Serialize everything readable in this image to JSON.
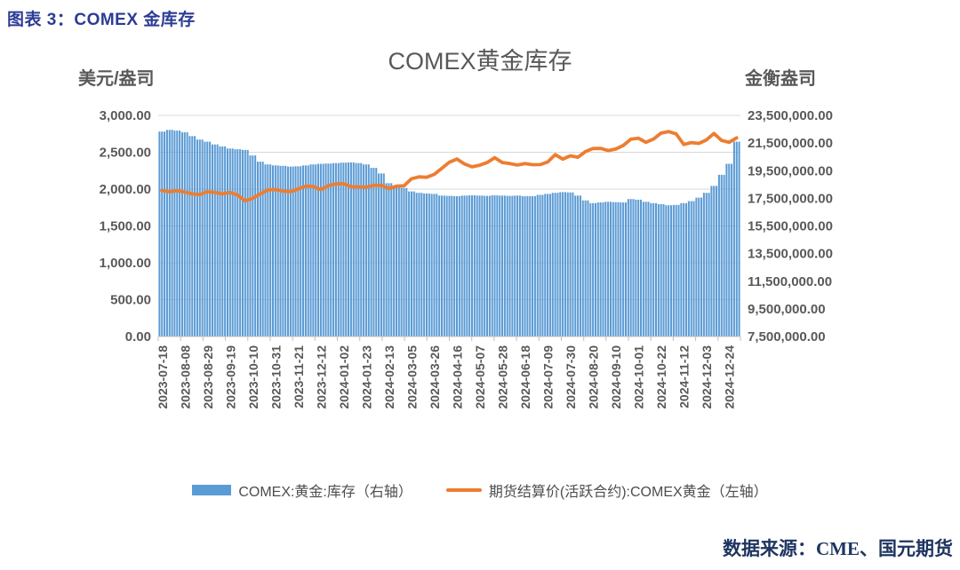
{
  "page": {
    "header": "图表 3：COMEX 金库存",
    "source": "数据来源：CME、国元期货"
  },
  "chart_data": {
    "type": "combo-bar-line",
    "title": "COMEX黄金库存",
    "left_axis": {
      "unit_label": "美元/盎司",
      "min": 0,
      "max": 3000,
      "step": 500,
      "tick_labels": [
        "3,000.00",
        "2,500.00",
        "2,000.00",
        "1,500.00",
        "1,000.00",
        "500.00",
        "0.00"
      ]
    },
    "right_axis": {
      "unit_label": "金衡盎司",
      "min": 7500000,
      "max": 23500000,
      "step": 2000000,
      "tick_labels": [
        "23,500,000.00",
        "21,500,000.00",
        "19,500,000.00",
        "17,500,000.00",
        "15,500,000.00",
        "13,500,000.00",
        "11,500,000.00",
        "9,500,000.00",
        "7,500,000.00"
      ]
    },
    "x_labels": [
      "2023-07-18",
      "2023-08-08",
      "2023-08-29",
      "2023-09-19",
      "2023-10-10",
      "2023-10-31",
      "2023-11-21",
      "2023-12-12",
      "2024-01-02",
      "2024-01-23",
      "2024-02-13",
      "2024-03-05",
      "2024-03-26",
      "2024-04-16",
      "2024-05-07",
      "2024-05-28",
      "2024-06-18",
      "2024-07-09",
      "2024-07-30",
      "2024-08-20",
      "2024-09-10",
      "2024-10-01",
      "2024-10-22",
      "2024-11-12",
      "2024-12-03",
      "2024-12-24"
    ],
    "x_label_stride": 3,
    "sampling": "weekly",
    "grid": "horizontal-left-axis",
    "legend_position": "bottom",
    "style": {
      "bar_subdivisions": 3,
      "gridline_color": "#d9d9d9",
      "axis_line_color": "#bfbfbf"
    },
    "series": [
      {
        "name": "COMEX:黄金:库存（右轴）",
        "type": "bar",
        "axis": "right",
        "color": "#5B9BD5",
        "values": [
          22330000,
          22450000,
          22400000,
          22280000,
          22000000,
          21750000,
          21600000,
          21400000,
          21250000,
          21100000,
          21050000,
          21000000,
          20600000,
          20150000,
          19950000,
          19880000,
          19850000,
          19800000,
          19820000,
          19880000,
          19950000,
          20000000,
          20020000,
          20050000,
          20080000,
          20100000,
          20050000,
          19950000,
          19700000,
          19300000,
          18600000,
          18400000,
          18250000,
          18000000,
          17900000,
          17850000,
          17820000,
          17700000,
          17680000,
          17650000,
          17700000,
          17720000,
          17700000,
          17680000,
          17720000,
          17700000,
          17680000,
          17700000,
          17660000,
          17650000,
          17750000,
          17820000,
          17900000,
          17950000,
          17930000,
          17700000,
          17350000,
          17150000,
          17200000,
          17250000,
          17220000,
          17200000,
          17450000,
          17400000,
          17250000,
          17150000,
          17080000,
          17000000,
          17020000,
          17150000,
          17300000,
          17550000,
          17900000,
          18400000,
          19200000,
          20000000,
          21600000
        ]
      },
      {
        "name": "期货结算价(活跃合约):COMEX黄金（左轴）",
        "type": "line",
        "axis": "left",
        "color": "#ED7D31",
        "values": [
          1981,
          1964,
          1979,
          1960,
          1935,
          1926,
          1965,
          1953,
          1935,
          1954,
          1920,
          1841,
          1875,
          1936,
          1988,
          1994,
          1974,
          1966,
          2001,
          2040,
          2036,
          1993,
          2047,
          2070,
          2073,
          2033,
          2030,
          2026,
          2051,
          2051,
          2007,
          2040,
          2044,
          2141,
          2166,
          2160,
          2200,
          2282,
          2365,
          2408,
          2342,
          2303,
          2324,
          2360,
          2426,
          2361,
          2347,
          2327,
          2347,
          2331,
          2333,
          2368,
          2468,
          2407,
          2452,
          2432,
          2508,
          2551,
          2553,
          2523,
          2543,
          2592,
          2677,
          2690,
          2635,
          2679,
          2760,
          2781,
          2750,
          2606,
          2631,
          2621,
          2668,
          2756,
          2662,
          2635,
          2695
        ]
      }
    ]
  }
}
